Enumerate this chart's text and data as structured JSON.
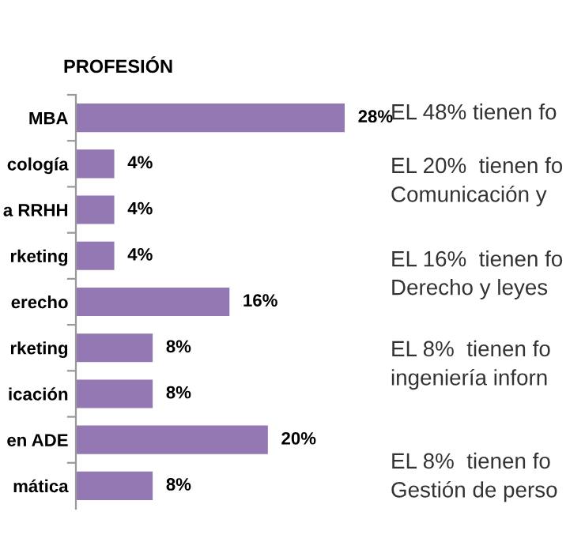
{
  "chart_data": {
    "type": "bar",
    "orientation": "horizontal",
    "title": "PROFESIÓN",
    "categories": [
      "MBA",
      "cología",
      "a RRHH",
      "rketing",
      "erecho",
      "rketing",
      "icación",
      "en ADE",
      "mática"
    ],
    "values": [
      28,
      4,
      4,
      4,
      16,
      8,
      8,
      20,
      8
    ],
    "value_labels": [
      "28%",
      "4%",
      "4%",
      "4%",
      "16%",
      "8%",
      "8%",
      "20%",
      "8%"
    ],
    "color": "#9478b4",
    "annotations": [
      "EL 48% tienen fo",
      "EL 20%  tienen fo\nComunicación y",
      "EL 16%  tienen fo\nDerecho y leyes",
      "EL 8%  tienen fo\ningeniería inforn",
      "EL 8%  tienen fo\nGestión de perso"
    ]
  }
}
